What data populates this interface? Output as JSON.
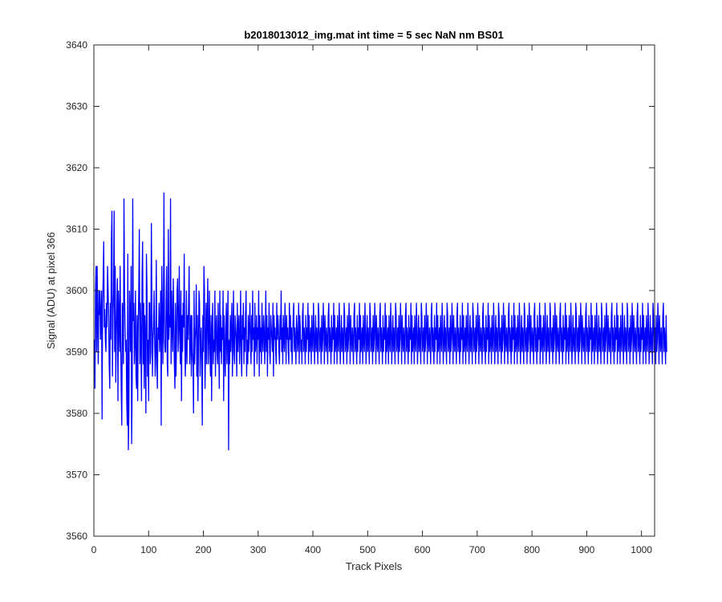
{
  "chart_data": {
    "type": "line",
    "title": "b2018013012_img.mat int time = 5 sec  NaN nm BS01",
    "xlabel": "Track Pixels",
    "ylabel": "Signal (ADU) at pixel 366",
    "xlim": [
      0,
      1024
    ],
    "ylim": [
      3560,
      3640
    ],
    "xticks": [
      0,
      100,
      200,
      300,
      400,
      500,
      600,
      700,
      800,
      900,
      1000
    ],
    "yticks": [
      3560,
      3570,
      3580,
      3590,
      3600,
      3610,
      3620,
      3630,
      3640
    ],
    "grid": false,
    "legend": "none",
    "series": [
      {
        "color": "#0000ff",
        "x_start": 1,
        "x_step": 1,
        "values": [
          3592,
          3584,
          3600,
          3604,
          3590,
          3604,
          3594,
          3588,
          3600,
          3596,
          3600,
          3592,
          3596,
          3600,
          3579,
          3598,
          3602,
          3608,
          3594,
          3597,
          3592,
          3590,
          3598,
          3594,
          3604,
          3600,
          3596,
          3588,
          3584,
          3598,
          3592,
          3608,
          3613,
          3586,
          3596,
          3600,
          3613,
          3590,
          3604,
          3585,
          3592,
          3598,
          3602,
          3582,
          3600,
          3596,
          3590,
          3604,
          3592,
          3584,
          3578,
          3598,
          3596,
          3588,
          3615,
          3600,
          3594,
          3590,
          3592,
          3582,
          3578,
          3606,
          3574,
          3580,
          3600,
          3596,
          3590,
          3604,
          3575,
          3585,
          3615,
          3595,
          3598,
          3588,
          3592,
          3600,
          3586,
          3584,
          3596,
          3582,
          3594,
          3600,
          3610,
          3588,
          3598,
          3592,
          3582,
          3602,
          3608,
          3588,
          3598,
          3584,
          3596,
          3592,
          3580,
          3606,
          3600,
          3586,
          3592,
          3582,
          3598,
          3598,
          3588,
          3590,
          3611,
          3597,
          3586,
          3592,
          3594,
          3600,
          3592,
          3586,
          3590,
          3605,
          3588,
          3584,
          3594,
          3592,
          3598,
          3590,
          3594,
          3600,
          3578,
          3604,
          3598,
          3588,
          3596,
          3616,
          3592,
          3590,
          3590,
          3599,
          3604,
          3588,
          3586,
          3610,
          3592,
          3596,
          3594,
          3615,
          3588,
          3600,
          3594,
          3590,
          3602,
          3596,
          3588,
          3584,
          3598,
          3586,
          3592,
          3600,
          3602,
          3590,
          3594,
          3604,
          3592,
          3588,
          3600,
          3582,
          3596,
          3590,
          3598,
          3594,
          3606,
          3592,
          3586,
          3590,
          3600,
          3588,
          3596,
          3592,
          3598,
          3604,
          3588,
          3592,
          3596,
          3586,
          3596,
          3590,
          3588,
          3580,
          3600,
          3588,
          3592,
          3594,
          3601,
          3586,
          3596,
          3582,
          3590,
          3600,
          3598,
          3586,
          3592,
          3594,
          3588,
          3578,
          3596,
          3590,
          3604,
          3600,
          3584,
          3590,
          3598,
          3588,
          3596,
          3602,
          3588,
          3592,
          3600,
          3590,
          3586,
          3596,
          3582,
          3594,
          3598,
          3588,
          3592,
          3590,
          3600,
          3586,
          3594,
          3596,
          3590,
          3588,
          3598,
          3592,
          3584,
          3600,
          3590,
          3596,
          3588,
          3594,
          3592,
          3600,
          3582,
          3596,
          3590,
          3586,
          3594,
          3598,
          3588,
          3594,
          3600,
          3574,
          3592,
          3588,
          3596,
          3590,
          3594,
          3598,
          3586,
          3592,
          3600,
          3590,
          3588,
          3596,
          3594,
          3592,
          3586,
          3598,
          3590,
          3594,
          3596,
          3588,
          3592,
          3600,
          3590,
          3586,
          3596,
          3592,
          3598,
          3588,
          3594,
          3590,
          3596,
          3600,
          3586,
          3592,
          3588,
          3596,
          3590,
          3594,
          3598,
          3592,
          3588,
          3596,
          3590,
          3600,
          3592,
          3594,
          3586,
          3598,
          3590,
          3592,
          3596,
          3588,
          3594,
          3592,
          3600,
          3586,
          3596,
          3590,
          3594,
          3588,
          3598,
          3592,
          3590,
          3596,
          3594,
          3588,
          3592,
          3600,
          3590,
          3596,
          3586,
          3594,
          3592,
          3598,
          3590,
          3588,
          3596,
          3594,
          3592,
          3590,
          3598,
          3586,
          3596,
          3592,
          3594,
          3590,
          3588,
          3598,
          3592,
          3596,
          3594,
          3590,
          3588,
          3596,
          3592,
          3600,
          3590,
          3594,
          3588,
          3596,
          3592,
          3590,
          3598,
          3594,
          3588,
          3596,
          3592,
          3594,
          3590,
          3588,
          3598,
          3592,
          3596,
          3590,
          3594,
          3588,
          3592,
          3596,
          3598,
          3590,
          3594,
          3592,
          3588,
          3596,
          3594,
          3590,
          3592,
          3598,
          3588,
          3596,
          3594,
          3590,
          3592,
          3588,
          3596,
          3598,
          3590,
          3594,
          3592,
          3588,
          3596,
          3590,
          3594,
          3592,
          3598,
          3588,
          3596,
          3590,
          3592,
          3594,
          3588,
          3596,
          3592,
          3590,
          3598,
          3594,
          3588,
          3592,
          3596,
          3590,
          3594,
          3592,
          3588,
          3598,
          3596,
          3590,
          3592,
          3594,
          3588,
          3596,
          3590,
          3592,
          3598,
          3594,
          3588,
          3596,
          3592,
          3590,
          3594,
          3592,
          3588,
          3596,
          3598,
          3590,
          3594,
          3592,
          3588,
          3596,
          3590,
          3594,
          3592,
          3598,
          3588,
          3596,
          3590,
          3592,
          3594,
          3588,
          3596,
          3592,
          3590,
          3598,
          3594,
          3588,
          3592,
          3596,
          3590,
          3594,
          3592,
          3588,
          3598,
          3596,
          3590,
          3592,
          3594,
          3588,
          3596,
          3590,
          3592,
          3598,
          3594,
          3588,
          3596,
          3592,
          3590,
          3594,
          3592,
          3588,
          3596,
          3598,
          3590,
          3594,
          3592,
          3588,
          3596,
          3590,
          3594,
          3592,
          3598,
          3588,
          3596,
          3590,
          3592,
          3594,
          3588,
          3596,
          3592,
          3590,
          3598,
          3594,
          3588,
          3592,
          3596,
          3590,
          3594,
          3592,
          3588,
          3598,
          3596,
          3590,
          3592,
          3594,
          3588,
          3596,
          3590,
          3592,
          3598,
          3594,
          3588,
          3596,
          3592,
          3590,
          3594,
          3592,
          3588,
          3596,
          3598,
          3590,
          3594,
          3592,
          3588,
          3596,
          3590,
          3594,
          3592,
          3598,
          3588,
          3596,
          3590,
          3592,
          3594,
          3588,
          3596,
          3592,
          3590,
          3598,
          3594,
          3588,
          3592,
          3596,
          3590,
          3594,
          3592,
          3588,
          3598,
          3596,
          3590,
          3592,
          3594,
          3588,
          3596,
          3590,
          3592,
          3598,
          3594,
          3588,
          3596,
          3592,
          3590,
          3594,
          3592,
          3588,
          3596,
          3598,
          3590,
          3594,
          3592,
          3588,
          3596,
          3590,
          3594,
          3592,
          3598,
          3588,
          3596,
          3590,
          3592,
          3594,
          3588,
          3596,
          3592,
          3590,
          3598,
          3594,
          3588,
          3592,
          3596,
          3590,
          3594,
          3592,
          3588,
          3598,
          3596,
          3590,
          3592,
          3594,
          3588,
          3596,
          3590,
          3592,
          3598,
          3594,
          3588,
          3596,
          3592,
          3590,
          3594,
          3592,
          3588,
          3596,
          3598,
          3590,
          3594,
          3592,
          3588,
          3596,
          3590,
          3594,
          3592,
          3598,
          3588,
          3596,
          3590,
          3592,
          3594,
          3588,
          3596,
          3592,
          3590,
          3598,
          3594,
          3588,
          3592,
          3596,
          3590,
          3594,
          3592,
          3588,
          3598,
          3596,
          3590,
          3592,
          3594,
          3588,
          3596,
          3590,
          3592,
          3598,
          3594,
          3588,
          3596,
          3592,
          3590,
          3594,
          3592,
          3588,
          3596,
          3598,
          3590,
          3594,
          3592,
          3588,
          3596,
          3590,
          3594,
          3592,
          3598,
          3588,
          3596,
          3590,
          3592,
          3594,
          3588,
          3596,
          3592,
          3590,
          3598,
          3594,
          3588,
          3592,
          3596,
          3590,
          3594,
          3592,
          3588,
          3598,
          3596,
          3590,
          3592,
          3594,
          3588,
          3596,
          3590,
          3592,
          3598,
          3594,
          3588,
          3596,
          3592,
          3590,
          3594,
          3592,
          3588,
          3596,
          3598,
          3590,
          3594,
          3592,
          3588,
          3596,
          3590,
          3594,
          3592,
          3598,
          3588,
          3596,
          3590,
          3592,
          3594,
          3588,
          3596,
          3592,
          3590,
          3598,
          3594,
          3588,
          3592,
          3596,
          3590,
          3594,
          3592,
          3588,
          3598,
          3596,
          3590,
          3592,
          3594,
          3588,
          3596,
          3590,
          3592,
          3598,
          3594,
          3588,
          3596,
          3592,
          3590,
          3594,
          3592,
          3588,
          3596,
          3598,
          3590,
          3594,
          3592,
          3588,
          3596,
          3590,
          3594,
          3592,
          3598,
          3588,
          3596,
          3590,
          3592,
          3594,
          3588,
          3596,
          3592,
          3590,
          3598,
          3594,
          3588,
          3592,
          3596,
          3590,
          3594,
          3592,
          3588,
          3598,
          3596,
          3590,
          3592,
          3594,
          3588,
          3596,
          3590,
          3592,
          3598,
          3594,
          3588,
          3596,
          3592,
          3590,
          3594,
          3592,
          3588,
          3596,
          3598,
          3590,
          3594,
          3592,
          3588,
          3596,
          3590,
          3594,
          3592,
          3598,
          3588,
          3596,
          3590,
          3592,
          3594,
          3588,
          3596,
          3592,
          3590,
          3598,
          3594,
          3588,
          3592,
          3596,
          3590,
          3594,
          3592,
          3588,
          3598,
          3596,
          3590,
          3592,
          3594,
          3588,
          3596,
          3590,
          3592,
          3598,
          3594,
          3588,
          3596,
          3592,
          3590,
          3594,
          3592,
          3588,
          3596,
          3598,
          3590,
          3594,
          3592,
          3588,
          3596,
          3590,
          3594,
          3592,
          3598,
          3588,
          3596,
          3590,
          3592,
          3594,
          3588,
          3596,
          3592,
          3590,
          3598,
          3594,
          3588,
          3592,
          3596,
          3590,
          3594,
          3592,
          3588,
          3598,
          3596,
          3590,
          3592,
          3594,
          3588,
          3596,
          3590,
          3592,
          3598,
          3594,
          3588,
          3596,
          3592,
          3590,
          3594,
          3592,
          3588,
          3596,
          3598,
          3590,
          3594,
          3592,
          3588,
          3596,
          3590,
          3594,
          3592,
          3598,
          3588,
          3596,
          3590,
          3592,
          3594,
          3588,
          3596,
          3592,
          3590,
          3598,
          3594,
          3588,
          3592,
          3596,
          3590,
          3594,
          3592,
          3588,
          3598,
          3596,
          3590,
          3592,
          3594,
          3588,
          3596,
          3590,
          3592,
          3598,
          3594,
          3588,
          3596,
          3592,
          3590,
          3594,
          3592,
          3588,
          3596,
          3598,
          3590,
          3594,
          3592,
          3588,
          3596,
          3590,
          3594,
          3592,
          3598,
          3588,
          3596,
          3590,
          3592,
          3594,
          3588,
          3596,
          3592,
          3590,
          3598,
          3594,
          3588,
          3592,
          3596,
          3590,
          3594,
          3592,
          3588,
          3598,
          3596,
          3590,
          3592,
          3594,
          3588,
          3596,
          3590,
          3592,
          3598,
          3594,
          3588,
          3596,
          3592,
          3590,
          3594,
          3592,
          3588,
          3596,
          3598,
          3590,
          3594,
          3592,
          3588,
          3596,
          3590,
          3594,
          3592,
          3598,
          3588,
          3596,
          3590,
          3592,
          3594,
          3588,
          3596,
          3592,
          3590,
          3598,
          3594,
          3588,
          3592,
          3596,
          3590,
          3594,
          3592,
          3588,
          3598,
          3596,
          3590,
          3592,
          3594,
          3588,
          3596,
          3590,
          3592,
          3598,
          3594,
          3588,
          3596,
          3592,
          3590,
          3594,
          3592,
          3588,
          3596,
          3598,
          3590,
          3594,
          3592,
          3588,
          3596,
          3590
        ]
      }
    ]
  }
}
